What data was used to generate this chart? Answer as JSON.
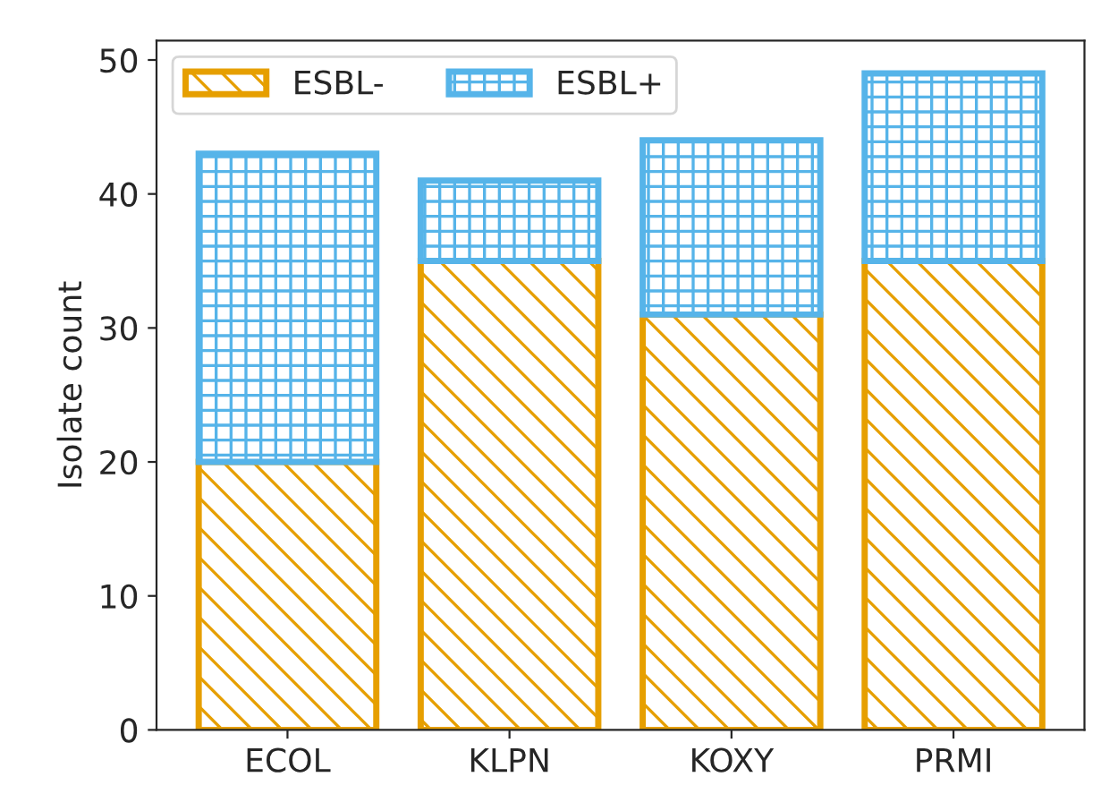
{
  "chart_data": {
    "type": "bar",
    "ylabel": "Isolate count",
    "stacked": true,
    "categories": [
      "ECOL",
      "KLPN",
      "KOXY",
      "PRMI"
    ],
    "series": [
      {
        "name": "ESBL-",
        "color": "#e69f00",
        "values": [
          20,
          35,
          31,
          35
        ]
      },
      {
        "name": "ESBL+",
        "color": "#56b4e9",
        "values": [
          23,
          6,
          13,
          14
        ]
      }
    ],
    "ylim": [
      0,
      51.45
    ],
    "yticks": [
      0,
      10,
      20,
      30,
      40,
      50
    ],
    "grid": false,
    "legend": "top left"
  }
}
